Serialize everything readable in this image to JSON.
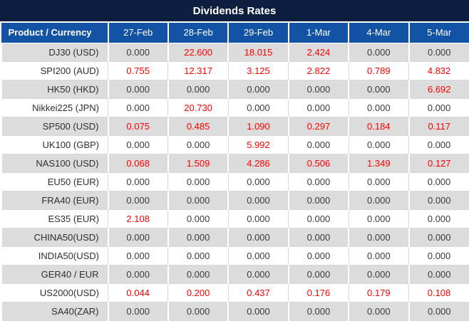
{
  "title": "Dividends Rates",
  "colors": {
    "title_bar_bg": "#0e1e40",
    "header_bg": "#1353a5",
    "header_text": "#ffffff",
    "row_alt_bg": "#dcdcdc",
    "value_red": "#ff0000",
    "value_black": "#3b3b3b"
  },
  "table": {
    "product_header": "Product / Currency",
    "date_headers": [
      "27-Feb",
      "28-Feb",
      "29-Feb",
      "1-Mar",
      "4-Mar",
      "5-Mar"
    ],
    "rows": [
      {
        "product": "DJ30 (USD)",
        "values": [
          "0.000",
          "22.600",
          "18.015",
          "2.424",
          "0.000",
          "0.000"
        ],
        "red": [
          0,
          1,
          1,
          1,
          0,
          0
        ]
      },
      {
        "product": "SPI200 (AUD)",
        "values": [
          "0.755",
          "12.317",
          "3.125",
          "2.822",
          "0.789",
          "4.832"
        ],
        "red": [
          1,
          1,
          1,
          1,
          1,
          1
        ]
      },
      {
        "product": "HK50 (HKD)",
        "values": [
          "0.000",
          "0.000",
          "0.000",
          "0.000",
          "0.000",
          "6.692"
        ],
        "red": [
          0,
          0,
          0,
          0,
          0,
          1
        ]
      },
      {
        "product": "Nikkei225 (JPN)",
        "values": [
          "0.000",
          "20.730",
          "0.000",
          "0.000",
          "0.000",
          "0.000"
        ],
        "red": [
          0,
          1,
          0,
          0,
          0,
          0
        ]
      },
      {
        "product": "SP500 (USD)",
        "values": [
          "0.075",
          "0.485",
          "1.090",
          "0.297",
          "0.184",
          "0.117"
        ],
        "red": [
          1,
          1,
          1,
          1,
          1,
          1
        ]
      },
      {
        "product": "UK100 (GBP)",
        "values": [
          "0.000",
          "0.000",
          "5.992",
          "0.000",
          "0.000",
          "0.000"
        ],
        "red": [
          0,
          0,
          1,
          0,
          0,
          0
        ]
      },
      {
        "product": "NAS100 (USD)",
        "values": [
          "0.068",
          "1.509",
          "4.286",
          "0.506",
          "1.349",
          "0.127"
        ],
        "red": [
          1,
          1,
          1,
          1,
          1,
          1
        ]
      },
      {
        "product": "EU50 (EUR)",
        "values": [
          "0.000",
          "0.000",
          "0.000",
          "0.000",
          "0.000",
          "0.000"
        ],
        "red": [
          0,
          0,
          0,
          0,
          0,
          0
        ]
      },
      {
        "product": "FRA40 (EUR)",
        "values": [
          "0.000",
          "0.000",
          "0.000",
          "0.000",
          "0.000",
          "0.000"
        ],
        "red": [
          0,
          0,
          0,
          0,
          0,
          0
        ]
      },
      {
        "product": "ES35 (EUR)",
        "values": [
          "2.108",
          "0.000",
          "0.000",
          "0.000",
          "0.000",
          "0.000"
        ],
        "red": [
          1,
          0,
          0,
          0,
          0,
          0
        ]
      },
      {
        "product": "CHINA50(USD)",
        "values": [
          "0.000",
          "0.000",
          "0.000",
          "0.000",
          "0.000",
          "0.000"
        ],
        "red": [
          0,
          0,
          0,
          0,
          0,
          0
        ]
      },
      {
        "product": "INDIA50(USD)",
        "values": [
          "0.000",
          "0.000",
          "0.000",
          "0.000",
          "0.000",
          "0.000"
        ],
        "red": [
          0,
          0,
          0,
          0,
          0,
          0
        ]
      },
      {
        "product": "GER40 / EUR",
        "values": [
          "0.000",
          "0.000",
          "0.000",
          "0.000",
          "0.000",
          "0.000"
        ],
        "red": [
          0,
          0,
          0,
          0,
          0,
          0
        ]
      },
      {
        "product": "US2000(USD)",
        "values": [
          "0.044",
          "0.200",
          "0.437",
          "0.176",
          "0.179",
          "0.108"
        ],
        "red": [
          1,
          1,
          1,
          1,
          1,
          1
        ]
      },
      {
        "product": "SA40(ZAR)",
        "values": [
          "0.000",
          "0.000",
          "0.000",
          "0.000",
          "0.000",
          "0.000"
        ],
        "red": [
          0,
          0,
          0,
          0,
          0,
          0
        ]
      }
    ]
  }
}
